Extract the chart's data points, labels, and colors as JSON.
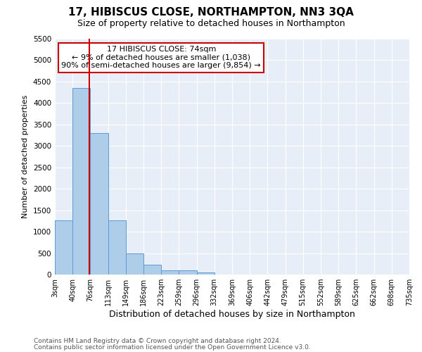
{
  "title": "17, HIBISCUS CLOSE, NORTHAMPTON, NN3 3QA",
  "subtitle": "Size of property relative to detached houses in Northampton",
  "xlabel": "Distribution of detached houses by size in Northampton",
  "ylabel": "Number of detached properties",
  "footer_line1": "Contains HM Land Registry data © Crown copyright and database right 2024.",
  "footer_line2": "Contains public sector information licensed under the Open Government Licence v3.0.",
  "annotation_line1": "17 HIBISCUS CLOSE: 74sqm",
  "annotation_line2": "← 9% of detached houses are smaller (1,038)",
  "annotation_line3": "90% of semi-detached houses are larger (9,854) →",
  "bar_edges": [
    3,
    40,
    76,
    113,
    149,
    186,
    223,
    259,
    296,
    332,
    369,
    406,
    442,
    479,
    515,
    552,
    589,
    625,
    662,
    698,
    735
  ],
  "bar_heights": [
    1270,
    4350,
    3300,
    1270,
    490,
    230,
    95,
    95,
    55,
    0,
    0,
    0,
    0,
    0,
    0,
    0,
    0,
    0,
    0,
    0
  ],
  "property_size": 74,
  "bar_color": "#aecde8",
  "bar_edge_color": "#5b9bd5",
  "red_line_color": "#cc0000",
  "annotation_box_color": "#cc0000",
  "background_color": "#e8eef7",
  "ylim": [
    0,
    5500
  ],
  "yticks": [
    0,
    500,
    1000,
    1500,
    2000,
    2500,
    3000,
    3500,
    4000,
    4500,
    5000,
    5500
  ],
  "title_fontsize": 11,
  "subtitle_fontsize": 9,
  "ylabel_fontsize": 8,
  "xlabel_fontsize": 9,
  "tick_fontsize": 7,
  "annot_fontsize": 8,
  "footer_fontsize": 6.5
}
